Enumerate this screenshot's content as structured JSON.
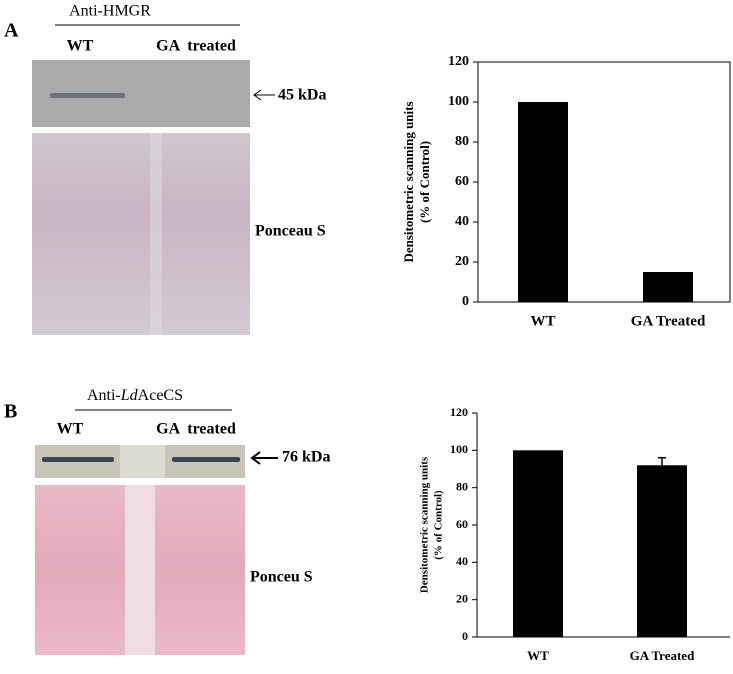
{
  "panels": [
    {
      "letter": "A",
      "antibody": [
        "Anti-HMGR"
      ],
      "lanes": [
        "WT",
        "GA  treated"
      ],
      "marker": "45 kDa",
      "stain": "Ponceau S"
    },
    {
      "letter": "B",
      "antibody": [
        "Anti-",
        "Ld",
        "AceCS"
      ],
      "lanes": [
        "WT",
        "GA  treated"
      ],
      "marker": "76 kDa",
      "stain": "Ponceu S"
    }
  ],
  "chart_data": [
    {
      "type": "bar",
      "ylabel": [
        "Densitometric scanning units",
        "(% of Control)"
      ],
      "categories": [
        "WT",
        "GA Treated"
      ],
      "values": [
        100,
        15
      ],
      "color": "#000000",
      "ylim": [
        0,
        120
      ],
      "yticks": [
        0,
        20,
        40,
        60,
        80,
        100,
        120
      ]
    },
    {
      "type": "bar",
      "ylabel": [
        "Densitometric scanning units",
        "(% of Control)"
      ],
      "categories": [
        "WT",
        "GA Treated"
      ],
      "values": [
        100,
        92
      ],
      "errors": [
        null,
        4
      ],
      "color": "#000000",
      "ylim": [
        0,
        120
      ],
      "yticks": [
        0,
        20,
        40,
        60,
        80,
        100,
        120
      ]
    }
  ]
}
